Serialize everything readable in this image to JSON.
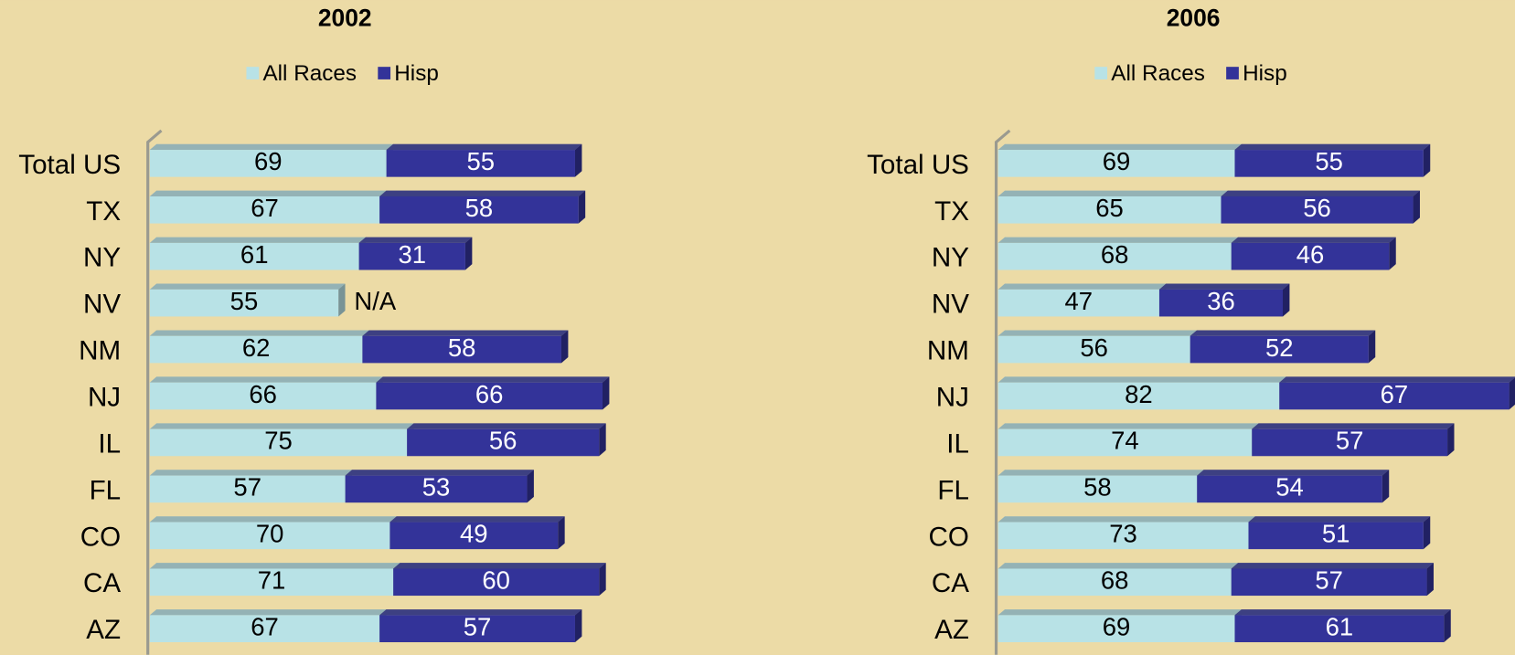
{
  "chart_data": [
    {
      "type": "bar",
      "orientation": "horizontal",
      "stacked": true,
      "title": "2002",
      "categories": [
        "Total US",
        "TX",
        "NY",
        "NV",
        "NM",
        "NJ",
        "IL",
        "FL",
        "CO",
        "CA",
        "AZ"
      ],
      "series": [
        {
          "name": "All Races",
          "color": "#b8e2e6",
          "values": [
            69,
            67,
            61,
            55,
            62,
            66,
            75,
            57,
            70,
            71,
            67
          ]
        },
        {
          "name": "Hisp",
          "color": "#333399",
          "values": [
            55,
            58,
            31,
            null,
            58,
            66,
            56,
            53,
            49,
            60,
            57
          ],
          "value_labels": [
            "55",
            "58",
            "31",
            "N/A",
            "58",
            "66",
            "56",
            "53",
            "49",
            "60",
            "57"
          ]
        }
      ]
    },
    {
      "type": "bar",
      "orientation": "horizontal",
      "stacked": true,
      "title": "2006",
      "categories": [
        "Total US",
        "TX",
        "NY",
        "NV",
        "NM",
        "NJ",
        "IL",
        "FL",
        "CO",
        "CA",
        "AZ"
      ],
      "series": [
        {
          "name": "All Races",
          "color": "#b8e2e6",
          "values": [
            69,
            65,
            68,
            47,
            56,
            82,
            74,
            58,
            73,
            68,
            69
          ]
        },
        {
          "name": "Hisp",
          "color": "#333399",
          "values": [
            55,
            56,
            46,
            36,
            52,
            67,
            57,
            54,
            51,
            57,
            61
          ]
        }
      ]
    }
  ]
}
